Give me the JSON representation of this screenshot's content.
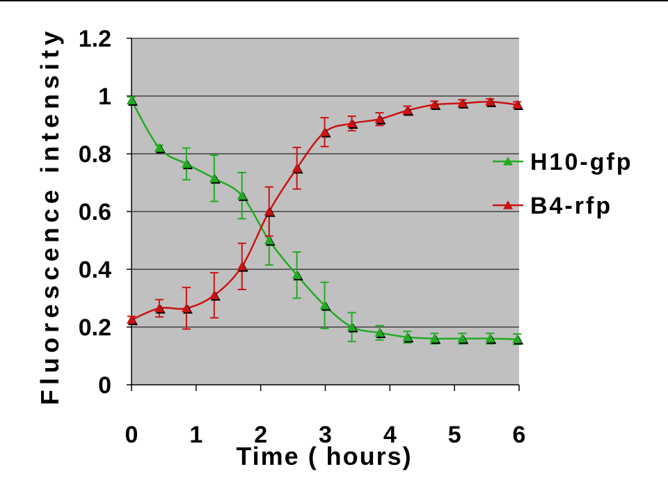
{
  "chart_data": {
    "type": "line",
    "xlabel": "Time ( hours)",
    "ylabel": "Fluorescence intensity",
    "xlim": [
      0,
      6
    ],
    "ylim": [
      0,
      1.2
    ],
    "x_ticks": [
      "0",
      "1",
      "2",
      "3",
      "4",
      "5",
      "6"
    ],
    "y_ticks": [
      "0",
      "0.2",
      "0.4",
      "0.6",
      "0.8",
      "1",
      "1.2"
    ],
    "y_tick_values": [
      0,
      0.2,
      0.4,
      0.6,
      0.8,
      1,
      1.2
    ],
    "x_tick_values": [
      0,
      1,
      2,
      3,
      4,
      5,
      6
    ],
    "grid": true,
    "legend_position": "right",
    "background": "#c0c0c0",
    "series": [
      {
        "name": "H10-gfp",
        "color": "#22aa22",
        "marker": "triangle",
        "x": [
          0,
          0.43,
          0.85,
          1.28,
          1.71,
          2.13,
          2.56,
          2.99,
          3.41,
          3.84,
          4.27,
          4.69,
          5.12,
          5.55,
          5.97
        ],
        "y": [
          0.985,
          0.82,
          0.765,
          0.715,
          0.655,
          0.5,
          0.38,
          0.275,
          0.2,
          0.18,
          0.165,
          0.16,
          0.16,
          0.16,
          0.158
        ],
        "err": [
          0.012,
          0.01,
          0.055,
          0.08,
          0.08,
          0.085,
          0.08,
          0.08,
          0.05,
          0.025,
          0.02,
          0.018,
          0.018,
          0.018,
          0.018
        ]
      },
      {
        "name": "B4-rfp",
        "color": "#cc1111",
        "marker": "triangle",
        "x": [
          0,
          0.43,
          0.85,
          1.28,
          1.71,
          2.13,
          2.56,
          2.99,
          3.41,
          3.84,
          4.27,
          4.69,
          5.12,
          5.55,
          5.97
        ],
        "y": [
          0.225,
          0.265,
          0.265,
          0.31,
          0.41,
          0.6,
          0.75,
          0.875,
          0.905,
          0.92,
          0.95,
          0.97,
          0.975,
          0.98,
          0.97
        ],
        "err": [
          0.012,
          0.03,
          0.072,
          0.078,
          0.08,
          0.085,
          0.072,
          0.05,
          0.025,
          0.022,
          0.015,
          0.012,
          0.012,
          0.01,
          0.01
        ]
      }
    ]
  }
}
